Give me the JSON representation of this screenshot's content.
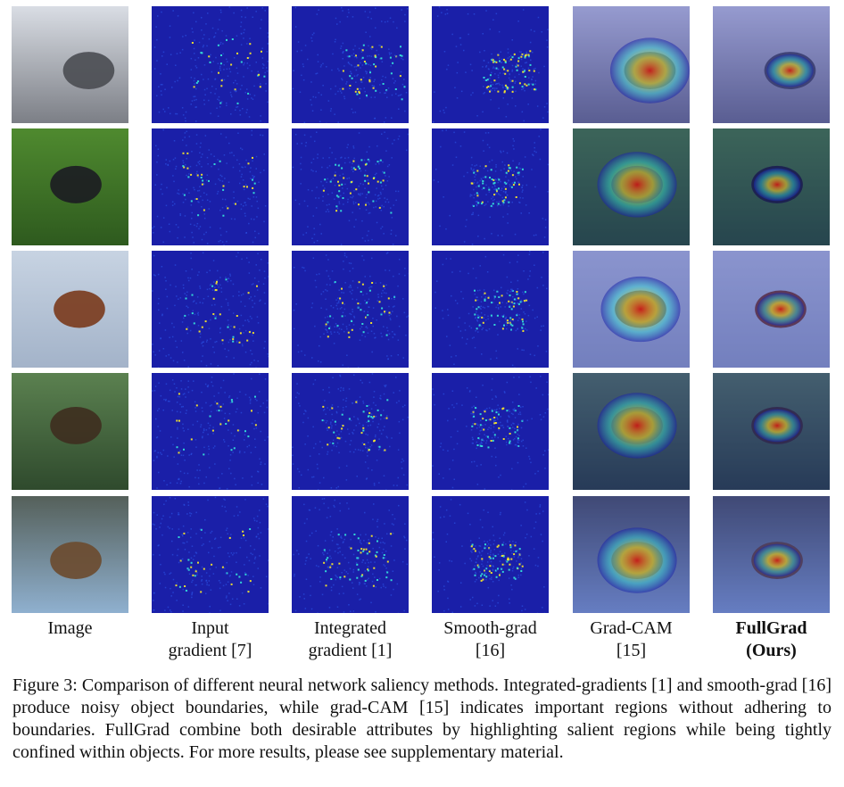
{
  "figure": {
    "columns": [
      {
        "id": "image",
        "label_lines": [
          "Image"
        ],
        "bold": false
      },
      {
        "id": "input-gradient",
        "label_lines": [
          "Input",
          "gradient [7]"
        ],
        "bold": false
      },
      {
        "id": "integrated-gradient",
        "label_lines": [
          "Integrated",
          "gradient [1]"
        ],
        "bold": false
      },
      {
        "id": "smooth-grad",
        "label_lines": [
          "Smooth-grad",
          "[16]"
        ],
        "bold": false
      },
      {
        "id": "grad-cam",
        "label_lines": [
          "Grad-CAM",
          "[15]"
        ],
        "bold": false
      },
      {
        "id": "fullgrad",
        "label_lines": [
          "FullGrad",
          "(Ours)"
        ],
        "bold": true
      }
    ],
    "rows": [
      {
        "id": "street-cyclist",
        "scene_colors": [
          "#d9dde4",
          "#7c7f86",
          "#4a4c52"
        ]
      },
      {
        "id": "dog-on-grass",
        "scene_colors": [
          "#4f8a2f",
          "#2e5a1e",
          "#1c1c22"
        ]
      },
      {
        "id": "bird-of-prey",
        "scene_colors": [
          "#c7d3e2",
          "#a3b3c9",
          "#7a3a1c"
        ]
      },
      {
        "id": "bee-eater",
        "scene_colors": [
          "#5b8150",
          "#2f4a2d",
          "#3e2d1f"
        ]
      },
      {
        "id": "spider",
        "scene_colors": [
          "#55605a",
          "#8fb0cf",
          "#6b4a2e"
        ]
      }
    ],
    "caption": "Figure 3: Comparison of different neural network saliency methods. Integrated-gradients [1] and smooth-grad [16] produce noisy object boundaries, while grad-CAM [15] indicates important regions without adhering to boundaries. FullGrad combine both desirable attributes by highlighting salient regions while being tightly confined within objects. For more results, please see supplementary material.",
    "colors": {
      "heatmap_background": "#1a1fa8",
      "heatmap_low": "#2a4fe0",
      "heatmap_mid": "#35e0d8",
      "heatmap_high": "#f5e62a",
      "heatmap_peak": "#d81a10"
    }
  }
}
